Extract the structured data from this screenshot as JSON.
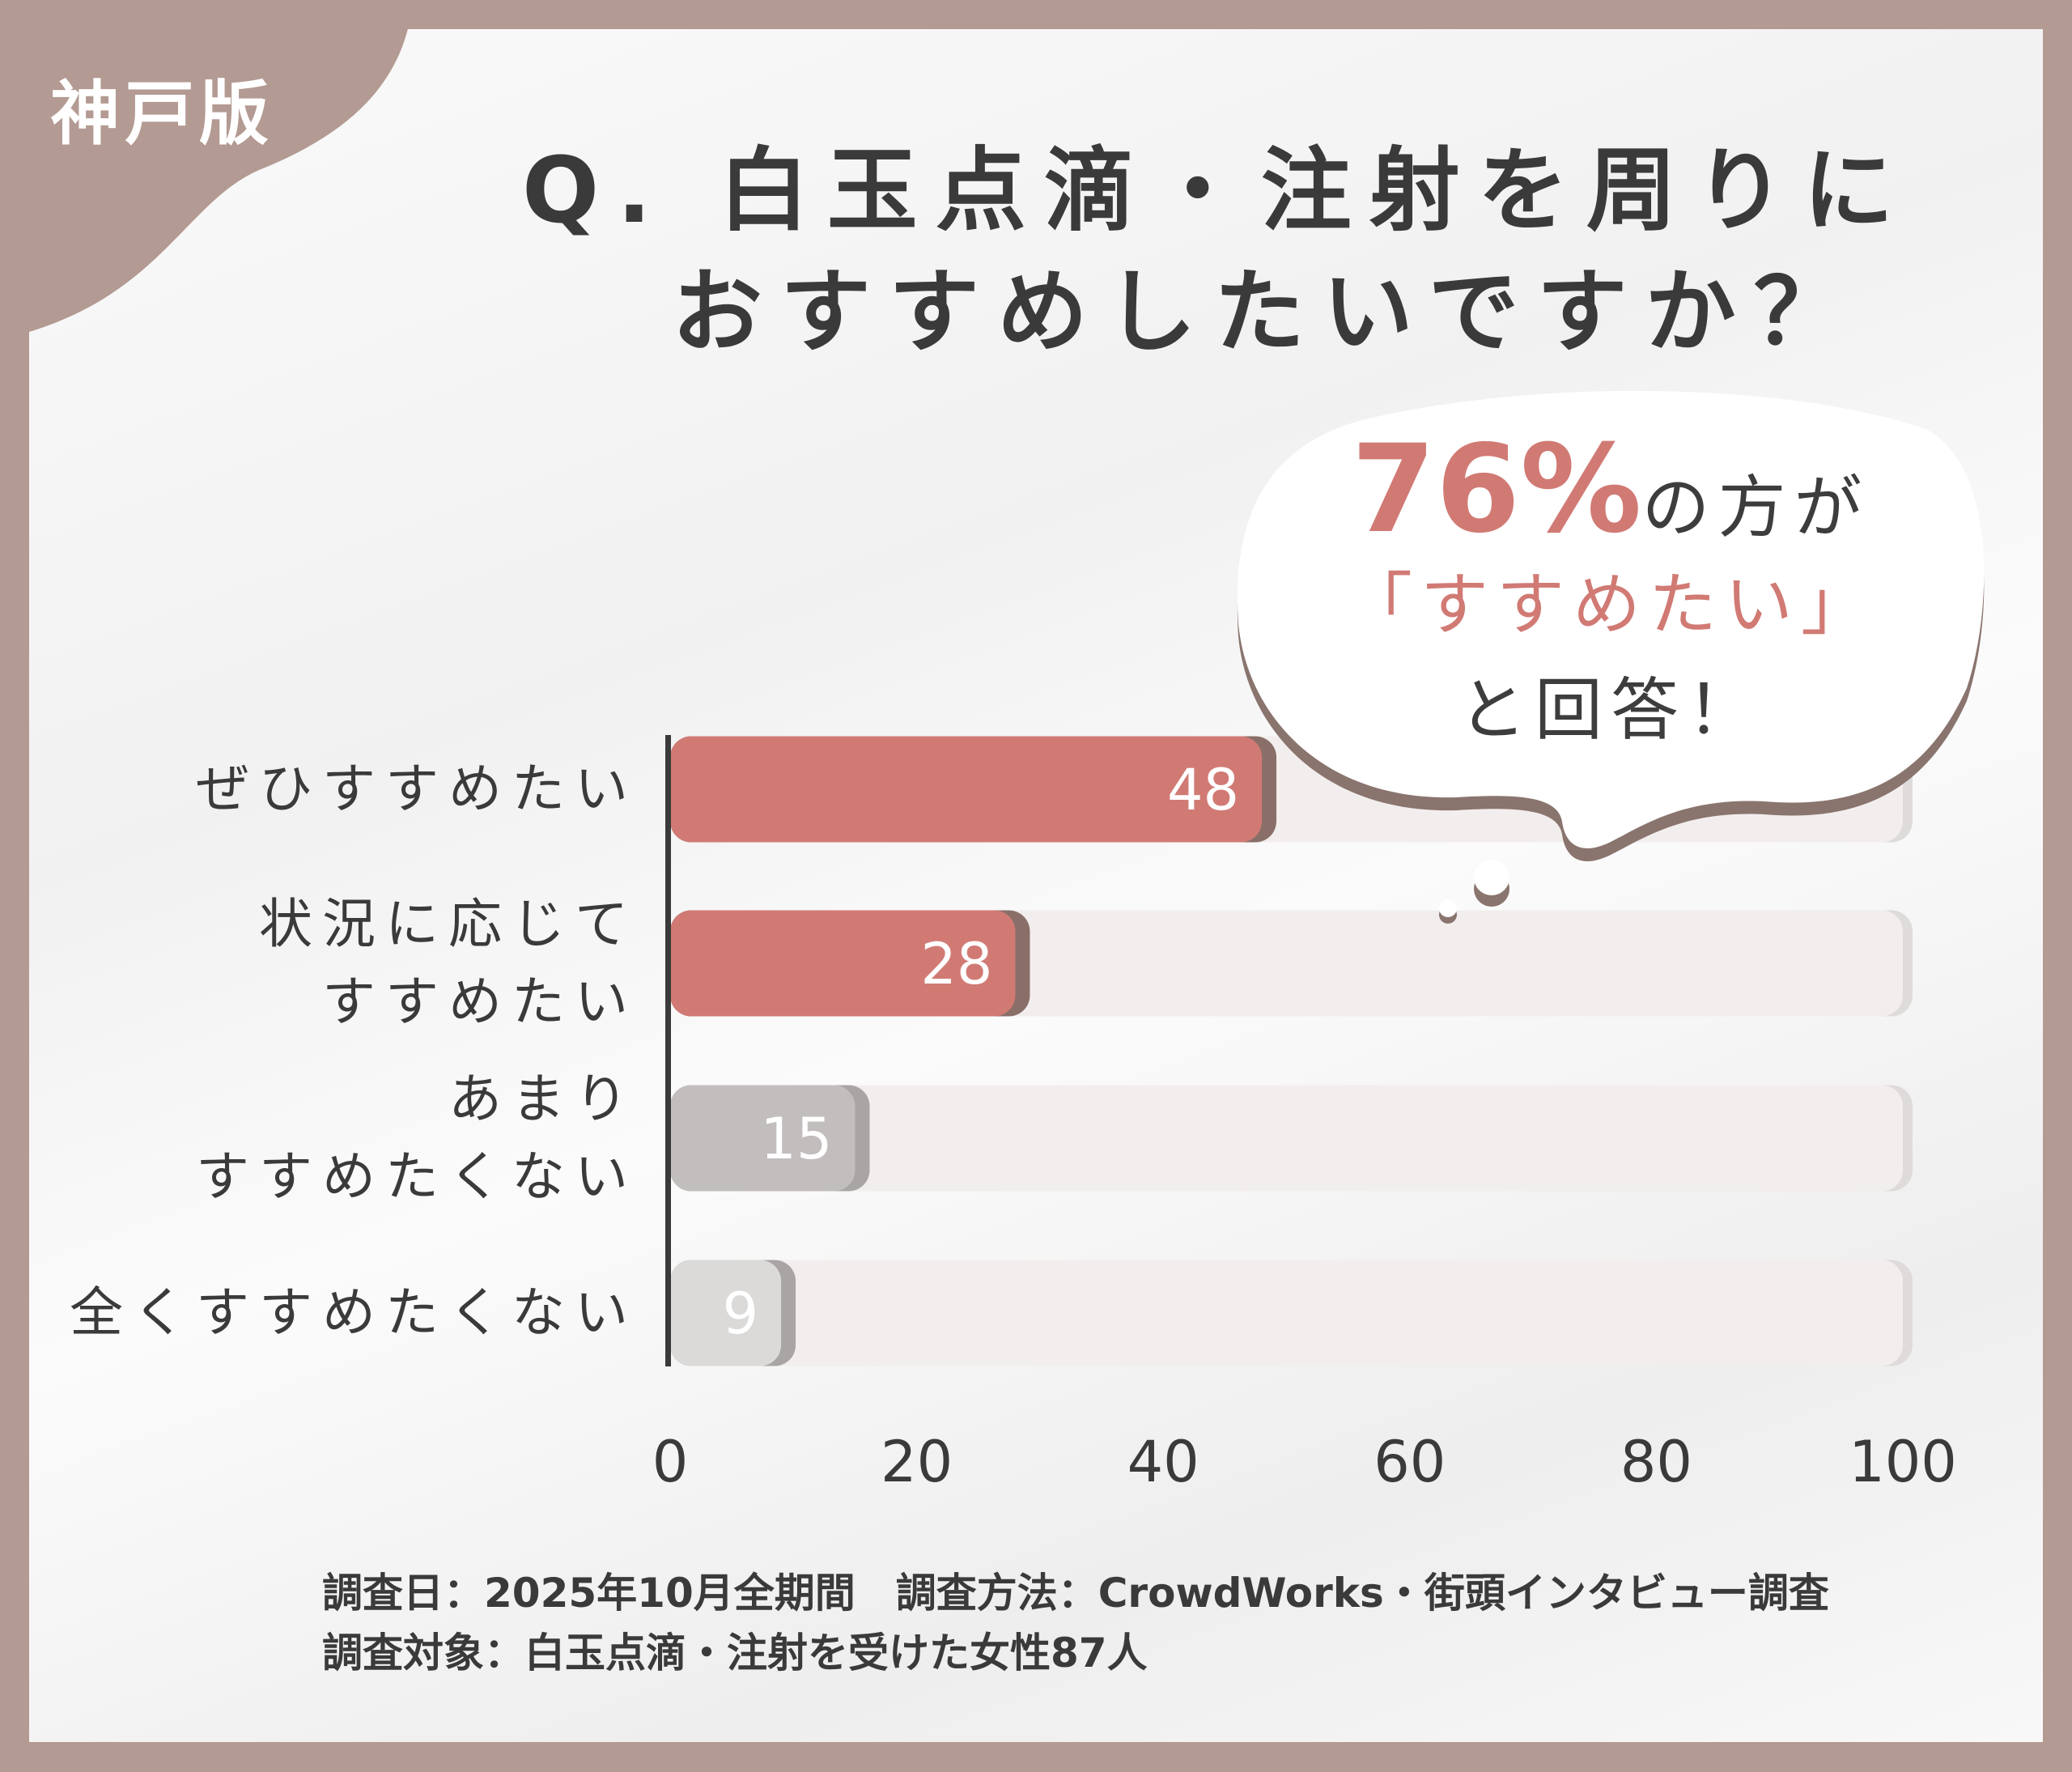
{
  "badge": "神戸版",
  "title": {
    "line1": "Q. 白玉点滴・注射を周りに",
    "line2": "おすすめしたいですか？"
  },
  "callout": {
    "percent": "76%",
    "line1_rest": "の方が",
    "line2": "「すすめたい」",
    "line3": "と回答！"
  },
  "chart_data": {
    "type": "bar",
    "orientation": "horizontal",
    "categories": [
      "ぜひすすめたい",
      "状況に応じて\nすすめたい",
      "あまり\nすすめたくない",
      "全くすすめたくない"
    ],
    "values": [
      48,
      28,
      15,
      9
    ],
    "xlim": [
      0,
      100
    ],
    "xticks": [
      "0",
      "20",
      "40",
      "60",
      "80",
      "100"
    ],
    "colors": [
      "#d17a74",
      "#d17a74",
      "#c2bebd",
      "#dcdad9"
    ],
    "track_color": "#f2eeed",
    "grid": false
  },
  "footer": {
    "line1": "調査日：2025年10月全期間　調査方法：CrowdWorks・街頭インタビュー調査",
    "line2": "調査対象：白玉点滴・注射を受けた女性87人"
  },
  "colors": {
    "frame": "#b39a92",
    "accent": "#d17a74",
    "text": "#3a3a3a"
  }
}
